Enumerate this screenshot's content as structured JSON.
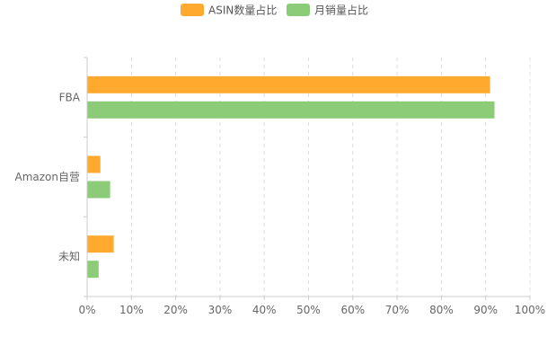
{
  "chart_data": {
    "type": "bar",
    "orientation": "horizontal",
    "categories": [
      "FBA",
      "Amazon自营",
      "未知"
    ],
    "series": [
      {
        "name": "ASIN数量占比",
        "color": "#FFAA2E",
        "values": [
          91,
          3,
          6
        ]
      },
      {
        "name": "月销量占比",
        "color": "#8CCB77",
        "values": [
          92,
          5.2,
          2.6
        ]
      }
    ],
    "x_ticks": [
      "0%",
      "10%",
      "20%",
      "30%",
      "40%",
      "50%",
      "60%",
      "70%",
      "80%",
      "90%",
      "100%"
    ],
    "xlim": [
      0,
      100
    ],
    "grid": "vertical-dashed",
    "legend_position": "top-center"
  }
}
